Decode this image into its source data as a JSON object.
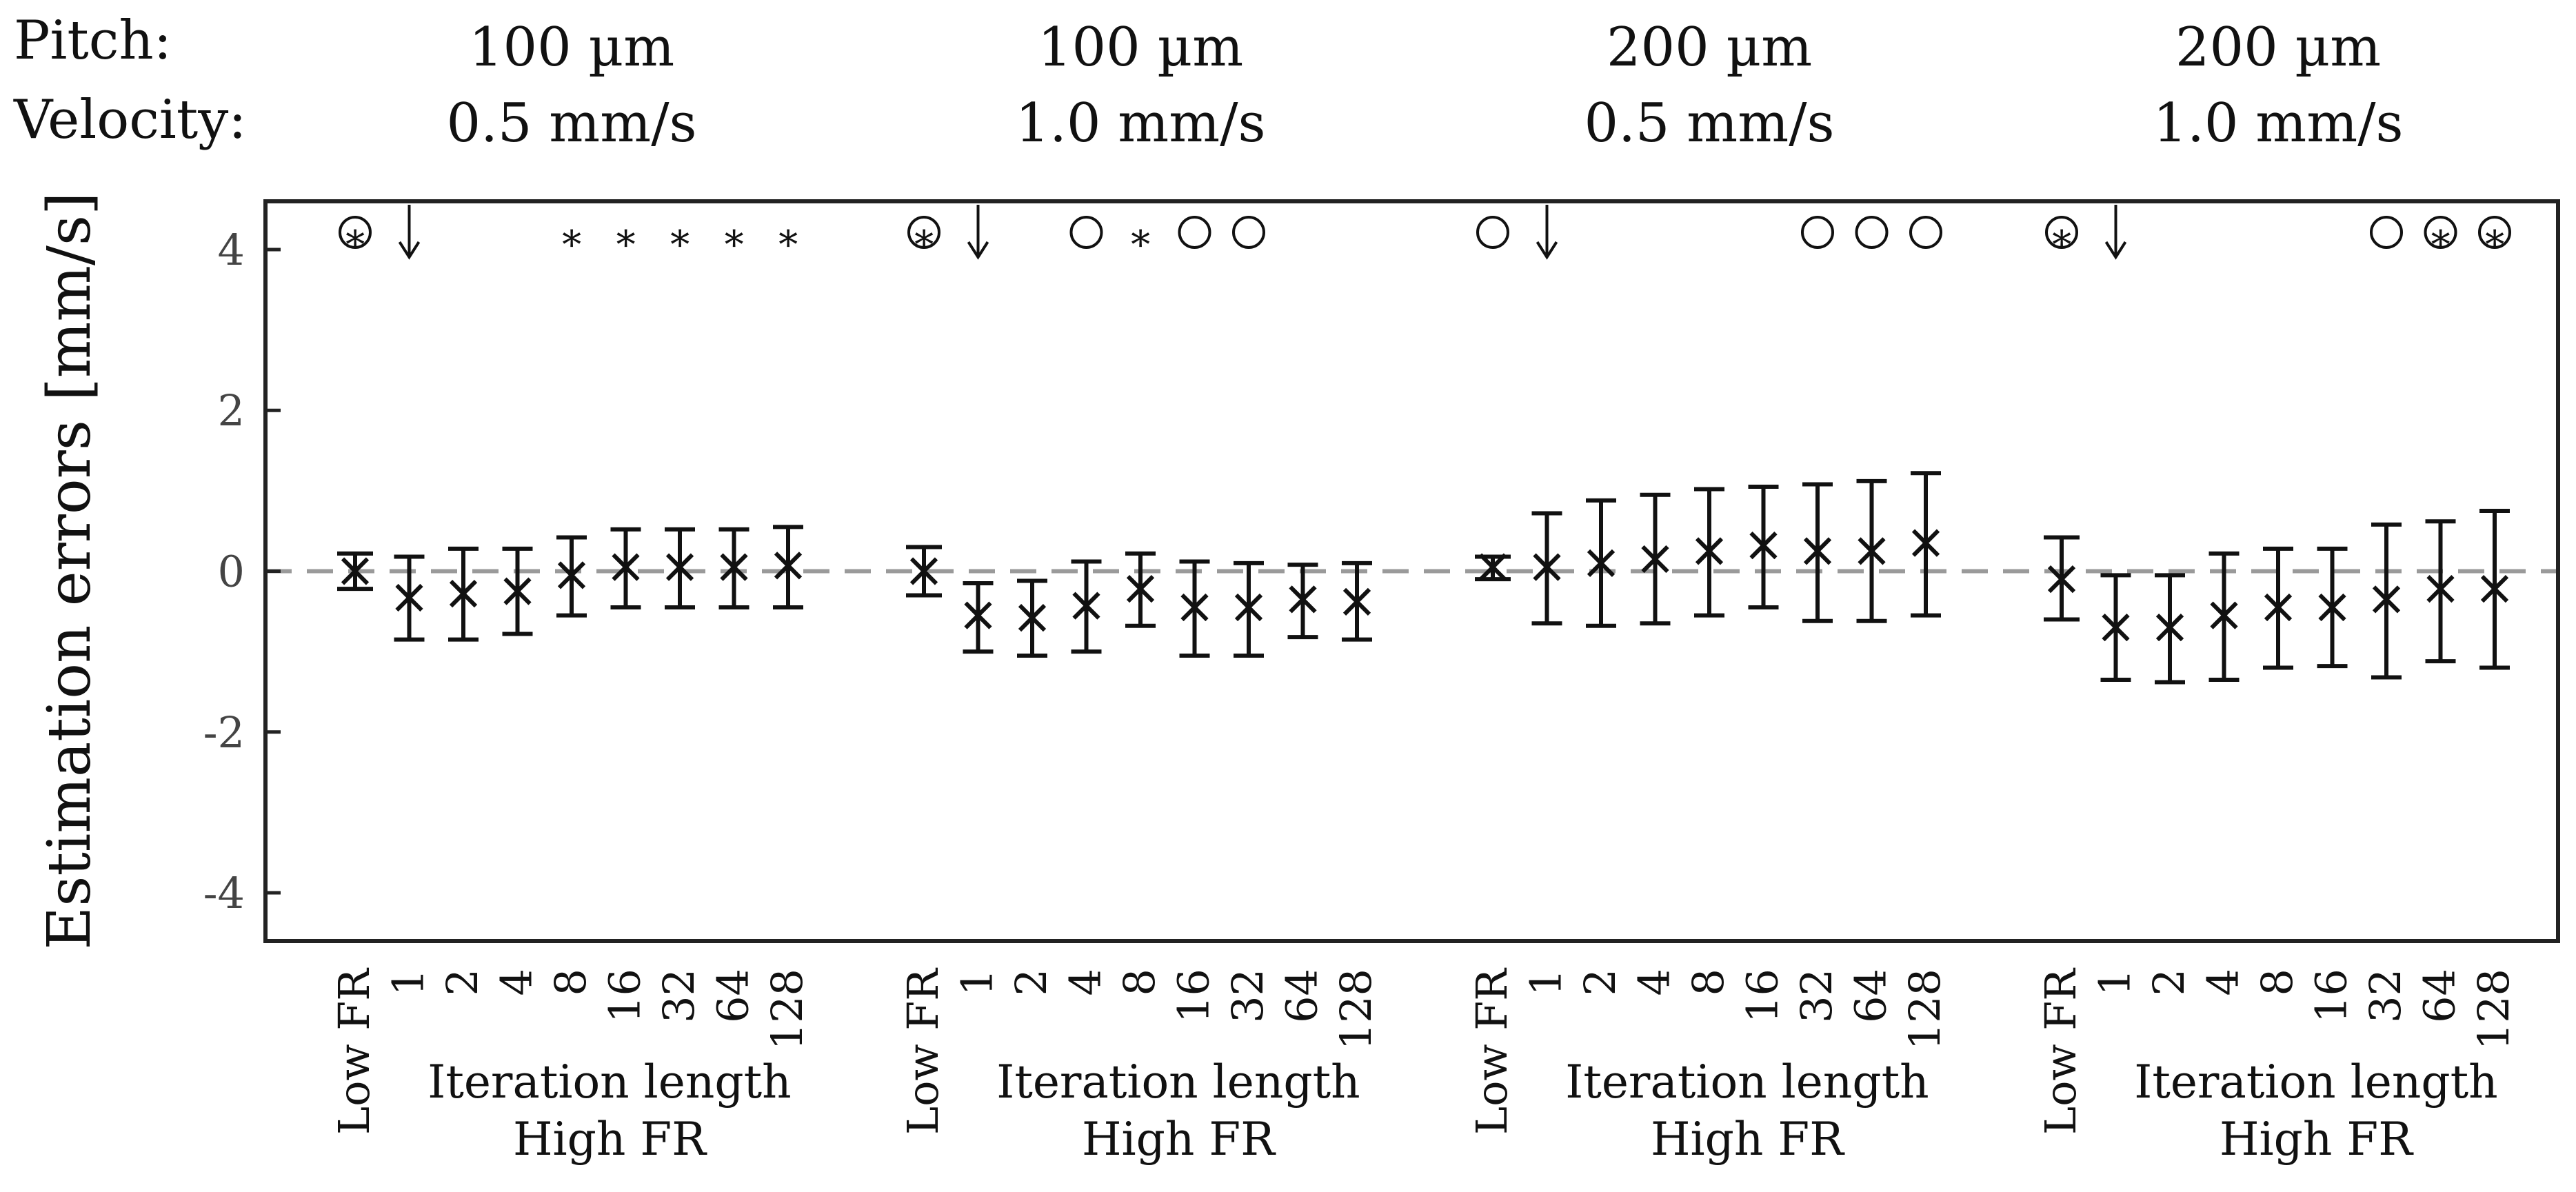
{
  "chart_data": {
    "type": "errorbar",
    "ylabel": "Estimation errors [mm/s]",
    "ylim": [
      -4.6,
      4.6
    ],
    "yticks": [
      4,
      2,
      0,
      -2,
      -4
    ],
    "ytick_labels": [
      "4",
      "2",
      "0",
      "-2",
      "-4"
    ],
    "zero_line": "dashed gray",
    "row_headers": {
      "pitch": "Pitch:",
      "velocity": "Velocity:"
    },
    "categories": [
      "Low FR",
      "1",
      "2",
      "4",
      "8",
      "16",
      "32",
      "64",
      "128"
    ],
    "xlabel_line1": "Iteration length",
    "xlabel_line2": "High FR",
    "groups": [
      {
        "pitch": "100 µm",
        "velocity": "0.5 mm/s",
        "mean": [
          0.0,
          -0.33,
          -0.28,
          -0.25,
          -0.05,
          0.05,
          0.05,
          0.05,
          0.07
        ],
        "lower": [
          -0.22,
          -0.85,
          -0.85,
          -0.78,
          -0.55,
          -0.45,
          -0.45,
          -0.45,
          -0.45
        ],
        "upper": [
          0.22,
          0.18,
          0.28,
          0.28,
          0.42,
          0.52,
          0.52,
          0.52,
          0.55
        ],
        "markers": [
          "circle-star",
          "arrow",
          "",
          "",
          "star",
          "star",
          "star",
          "star",
          "star"
        ]
      },
      {
        "pitch": "100 µm",
        "velocity": "1.0 mm/s",
        "mean": [
          0.0,
          -0.55,
          -0.58,
          -0.43,
          -0.22,
          -0.45,
          -0.45,
          -0.35,
          -0.38
        ],
        "lower": [
          -0.3,
          -1.0,
          -1.05,
          -1.0,
          -0.68,
          -1.05,
          -1.05,
          -0.82,
          -0.85
        ],
        "upper": [
          0.3,
          -0.15,
          -0.12,
          0.12,
          0.22,
          0.12,
          0.1,
          0.08,
          0.1
        ],
        "markers": [
          "circle-star",
          "arrow",
          "",
          "circle",
          "star",
          "circle",
          "circle",
          "",
          ""
        ]
      },
      {
        "pitch": "200 µm",
        "velocity": "0.5 mm/s",
        "mean": [
          0.05,
          0.05,
          0.1,
          0.15,
          0.25,
          0.32,
          0.25,
          0.25,
          0.35
        ],
        "lower": [
          -0.1,
          -0.65,
          -0.68,
          -0.65,
          -0.55,
          -0.45,
          -0.62,
          -0.62,
          -0.55
        ],
        "upper": [
          0.18,
          0.72,
          0.88,
          0.95,
          1.02,
          1.05,
          1.08,
          1.12,
          1.22
        ],
        "markers": [
          "circle",
          "arrow",
          "",
          "",
          "",
          "",
          "circle",
          "circle",
          "circle"
        ]
      },
      {
        "pitch": "200 µm",
        "velocity": "1.0 mm/s",
        "mean": [
          -0.1,
          -0.7,
          -0.7,
          -0.55,
          -0.45,
          -0.45,
          -0.35,
          -0.22,
          -0.22
        ],
        "lower": [
          -0.6,
          -1.35,
          -1.38,
          -1.35,
          -1.2,
          -1.18,
          -1.32,
          -1.12,
          -1.2
        ],
        "upper": [
          0.42,
          -0.05,
          -0.05,
          0.22,
          0.28,
          0.28,
          0.58,
          0.62,
          0.75
        ],
        "markers": [
          "circle-star",
          "arrow",
          "",
          "",
          "",
          "",
          "circle",
          "circle-star",
          "circle-star"
        ]
      }
    ]
  }
}
